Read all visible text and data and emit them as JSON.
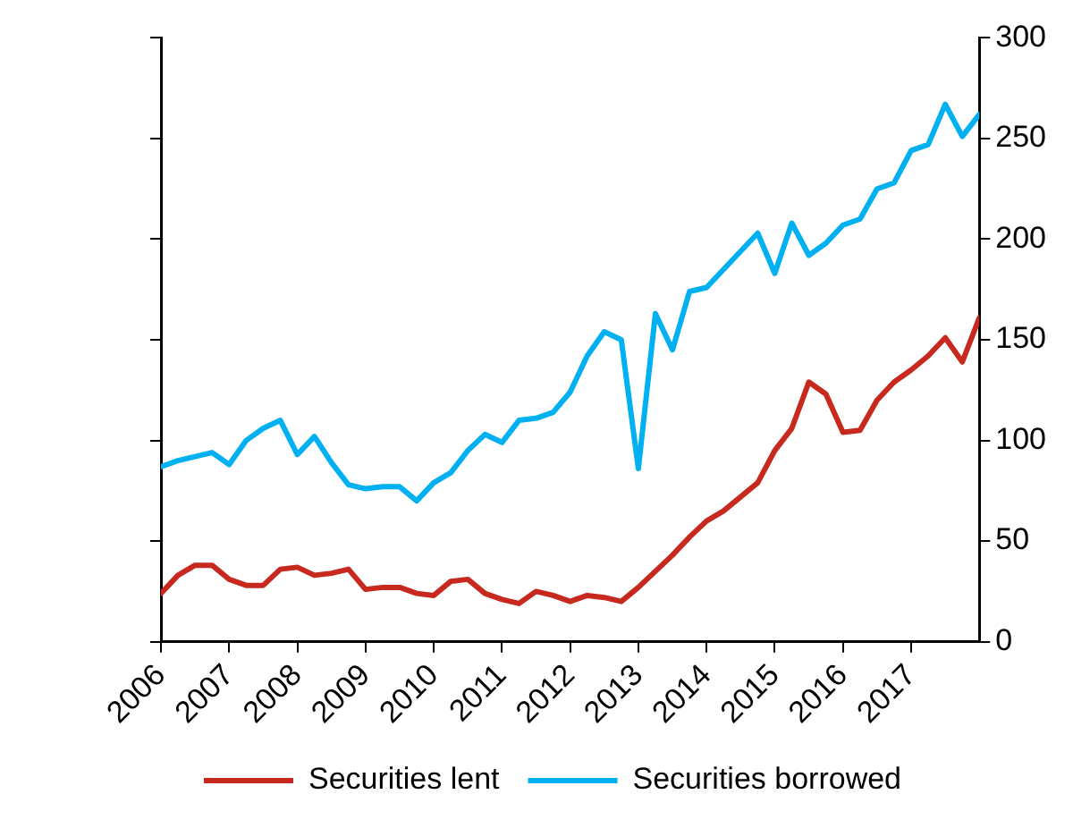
{
  "chart_data": {
    "type": "line",
    "x": [
      2006,
      2006.25,
      2006.5,
      2006.75,
      2007,
      2007.25,
      2007.5,
      2007.75,
      2008,
      2008.25,
      2008.5,
      2008.75,
      2009,
      2009.25,
      2009.5,
      2009.75,
      2010,
      2010.25,
      2010.5,
      2010.75,
      2011,
      2011.25,
      2011.5,
      2011.75,
      2012,
      2012.25,
      2012.5,
      2012.75,
      2013,
      2013.25,
      2013.5,
      2013.75,
      2014,
      2014.25,
      2014.5,
      2014.75,
      2015,
      2015.25,
      2015.5,
      2015.75,
      2016,
      2016.25,
      2016.5,
      2016.75,
      2017,
      2017.25,
      2017.5,
      2017.75,
      2018
    ],
    "series": [
      {
        "name": "Securities lent",
        "color": "#c8291e",
        "values": [
          24,
          33,
          38,
          38,
          31,
          28,
          28,
          36,
          37,
          33,
          34,
          36,
          26,
          27,
          27,
          24,
          23,
          30,
          31,
          24,
          21,
          19,
          25,
          23,
          20,
          23,
          22,
          20,
          27,
          35,
          43,
          52,
          60,
          65,
          72,
          79,
          95,
          106,
          129,
          123,
          104,
          105,
          120,
          129,
          135,
          142,
          151,
          139,
          161
        ]
      },
      {
        "name": "Securities borrowed",
        "color": "#00b0f0",
        "values": [
          87,
          90,
          92,
          94,
          88,
          100,
          106,
          110,
          93,
          102,
          89,
          78,
          76,
          77,
          77,
          70,
          79,
          84,
          95,
          103,
          99,
          110,
          111,
          114,
          124,
          142,
          154,
          150,
          86,
          163,
          145,
          174,
          176,
          185,
          194,
          203,
          183,
          208,
          192,
          198,
          207,
          210,
          225,
          228,
          244,
          247,
          267,
          251,
          262
        ]
      }
    ],
    "xlim": [
      2006,
      2018
    ],
    "xticks": [
      2006,
      2007,
      2008,
      2009,
      2010,
      2011,
      2012,
      2013,
      2014,
      2015,
      2016,
      2017
    ],
    "ylim": [
      0,
      300
    ],
    "yticks": [
      0,
      50,
      100,
      150,
      200,
      250,
      300
    ],
    "grid": false,
    "legend": "bottom",
    "marker": "none",
    "line_style": "solid"
  }
}
